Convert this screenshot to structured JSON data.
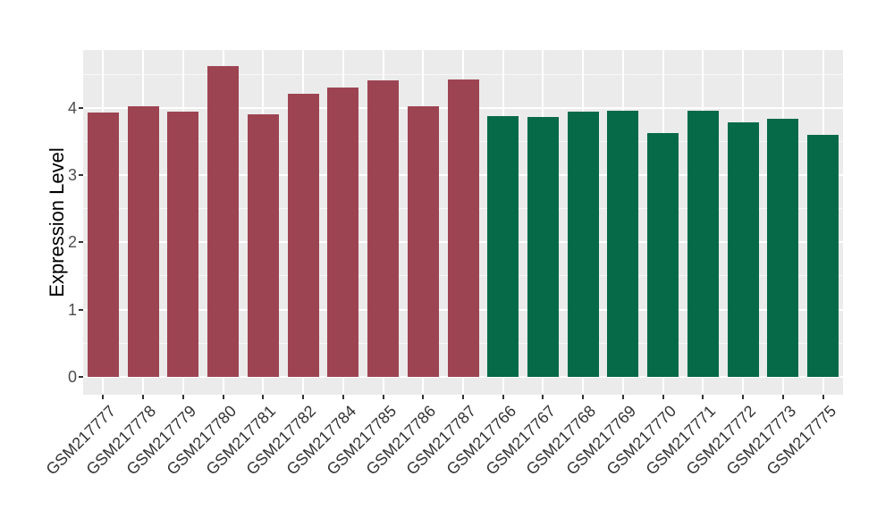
{
  "chart_data": {
    "type": "bar",
    "title": "",
    "xlabel": "",
    "ylabel": "Expression Level",
    "ylim": [
      0,
      4.86
    ],
    "yticks": [
      0,
      1,
      2,
      3,
      4
    ],
    "grid": "major and minor horizontal white lines, major vertical white lines at bar centers, on gray panel",
    "legend": "none",
    "categories": [
      "GSM217777",
      "GSM217778",
      "GSM217779",
      "GSM217780",
      "GSM217781",
      "GSM217782",
      "GSM217784",
      "GSM217785",
      "GSM217786",
      "GSM217787",
      "GSM217766",
      "GSM217767",
      "GSM217768",
      "GSM217769",
      "GSM217770",
      "GSM217771",
      "GSM217772",
      "GSM217773",
      "GSM217775"
    ],
    "values": [
      3.93,
      4.03,
      3.94,
      4.63,
      3.91,
      4.21,
      4.3,
      4.41,
      4.03,
      4.43,
      3.88,
      3.87,
      3.95,
      3.96,
      3.63,
      3.96,
      3.78,
      3.84,
      3.6
    ],
    "bar_color_group": [
      0,
      0,
      0,
      0,
      0,
      0,
      0,
      0,
      0,
      0,
      1,
      1,
      1,
      1,
      1,
      1,
      1,
      1,
      1
    ],
    "palette": {
      "group0": "#9D4452",
      "group1": "#066A49",
      "panel_bg": "#EBEBEB",
      "grid_major": "#FFFFFF",
      "grid_minor": "rgba(255,255,255,0.65)",
      "axis_text": "#4D4D4D",
      "x_label_text": "#333333",
      "tick_mark": "#333333"
    }
  }
}
